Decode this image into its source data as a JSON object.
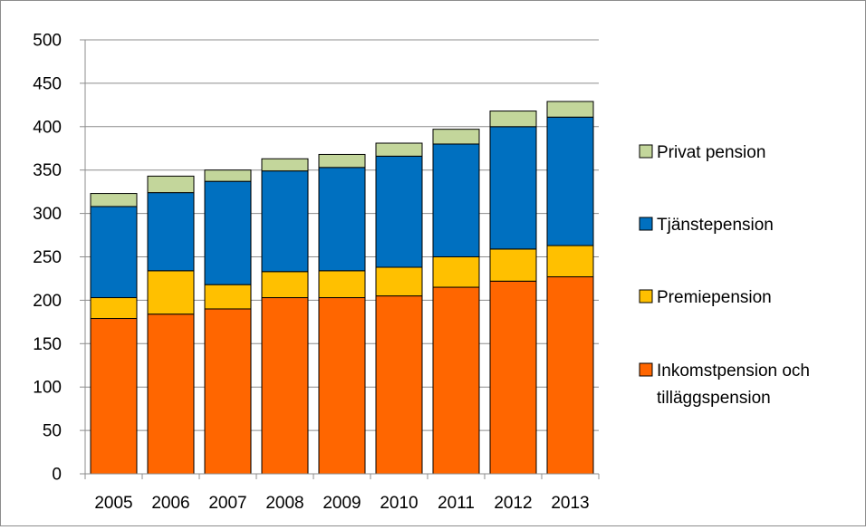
{
  "chart_data": {
    "type": "bar",
    "stacked": true,
    "categories": [
      "2005",
      "2006",
      "2007",
      "2008",
      "2009",
      "2010",
      "2011",
      "2012",
      "2013"
    ],
    "series": [
      {
        "name": "Inkomstpension och tilläggspension",
        "color": "#ff6600",
        "values": [
          179,
          184,
          190,
          203,
          203,
          205,
          215,
          222,
          227
        ]
      },
      {
        "name": "Premiepension",
        "color": "#ffc000",
        "values": [
          24,
          50,
          28,
          30,
          31,
          33,
          35,
          37,
          36
        ]
      },
      {
        "name": "Tjänstepension",
        "color": "#0070c0",
        "values": [
          105,
          90,
          119,
          116,
          119,
          128,
          130,
          141,
          148
        ]
      },
      {
        "name": "Privat pension",
        "color": "#c3d69b",
        "values": [
          15,
          19,
          13,
          14,
          15,
          15,
          17,
          18,
          18
        ]
      }
    ],
    "ylim": [
      0,
      500
    ],
    "yticks": [
      "0",
      "50",
      "100",
      "150",
      "200",
      "250",
      "300",
      "350",
      "400",
      "450",
      "500"
    ],
    "grid": true,
    "legend_position": "right",
    "legend": [
      {
        "name": "Privat pension",
        "color": "#c3d69b",
        "lines": [
          "Privat pension"
        ]
      },
      {
        "name": "Tjänstepension",
        "color": "#0070c0",
        "lines": [
          "Tjänstepension"
        ]
      },
      {
        "name": "Premiepension",
        "color": "#ffc000",
        "lines": [
          "Premiepension"
        ]
      },
      {
        "name": "Inkomstpension och tilläggspension",
        "color": "#ff6600",
        "lines": [
          "Inkomstpension och",
          "tilläggspension"
        ]
      }
    ]
  }
}
